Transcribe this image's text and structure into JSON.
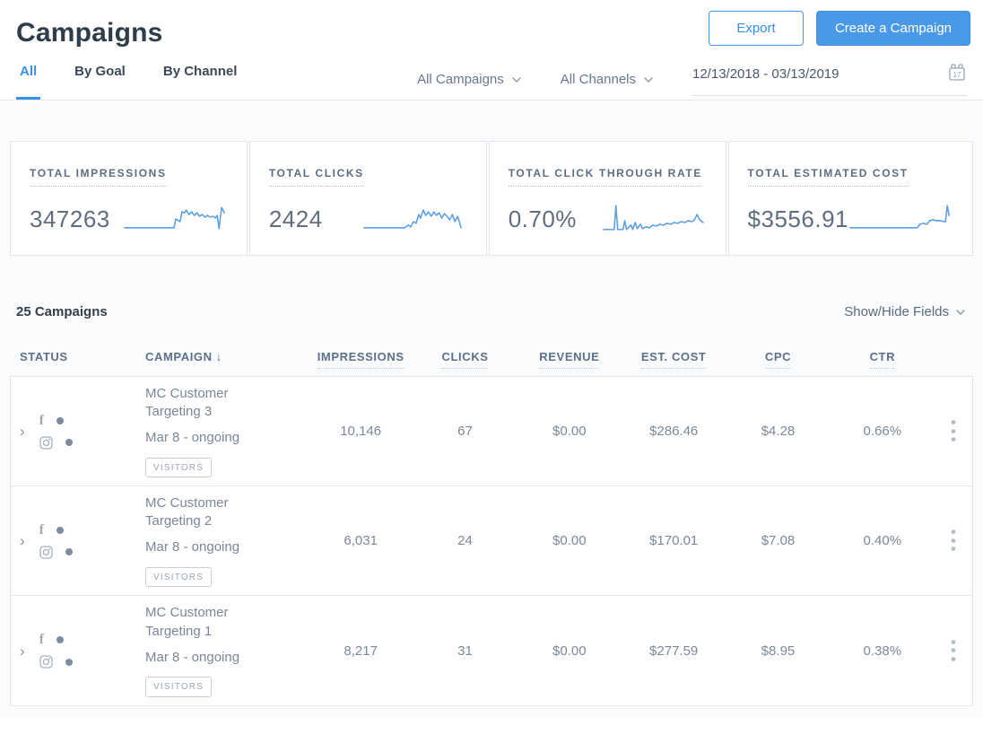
{
  "page": {
    "title": "Campaigns"
  },
  "header": {
    "export_label": "Export",
    "create_label": "Create a Campaign"
  },
  "tabs": {
    "all": "All",
    "by_goal": "By Goal",
    "by_channel": "By Channel"
  },
  "filters": {
    "campaigns_dropdown": "All Campaigns",
    "channels_dropdown": "All Channels",
    "date_range": "12/13/2018 - 03/13/2019",
    "calendar_day": "17"
  },
  "colors": {
    "accent_blue": "#3a91e8",
    "button_blue": "#4a99e8",
    "sparkline_blue": "#5b9fe6"
  },
  "stats": [
    {
      "label": "TOTAL IMPRESSIONS",
      "value": "347263",
      "spark": [
        2,
        30,
        58,
        30,
        60,
        20,
        63,
        22,
        65,
        23,
        67,
        12,
        70,
        13,
        72,
        10,
        75,
        15,
        78,
        12,
        81,
        16,
        84,
        13,
        87,
        17,
        90,
        15,
        93,
        18,
        96,
        16,
        99,
        18,
        102,
        17,
        105,
        19,
        107,
        16,
        109,
        31,
        112,
        7,
        115,
        13
      ]
    },
    {
      "label": "TOTAL CLICKS",
      "value": "2424",
      "spark": [
        2,
        30,
        48,
        30,
        52,
        27,
        55,
        29,
        58,
        23,
        61,
        25,
        64,
        15,
        66,
        19,
        69,
        10,
        72,
        16,
        75,
        12,
        78,
        17,
        81,
        12,
        84,
        16,
        87,
        13,
        90,
        19,
        93,
        14,
        96,
        17,
        99,
        21,
        102,
        15,
        105,
        23,
        108,
        17,
        112,
        30
      ]
    },
    {
      "label": "TOTAL CLICK THROUGH RATE",
      "value": "0.70%",
      "spark": [
        2,
        32,
        14,
        32,
        16,
        5,
        18,
        32,
        24,
        32,
        26,
        22,
        28,
        32,
        33,
        27,
        35,
        32,
        38,
        24,
        40,
        31,
        44,
        26,
        46,
        31,
        50,
        29,
        54,
        30,
        58,
        27,
        62,
        28,
        66,
        26,
        70,
        27,
        74,
        25,
        78,
        26,
        82,
        24,
        86,
        25,
        90,
        23,
        94,
        24,
        98,
        22,
        102,
        23,
        105,
        21,
        108,
        15,
        111,
        21,
        115,
        24
      ]
    },
    {
      "label": "TOTAL ESTIMATED COST",
      "value": "$3556.91",
      "spark": [
        2,
        30,
        78,
        30,
        81,
        26,
        85,
        25,
        89,
        26,
        92,
        22,
        96,
        21,
        100,
        22,
        104,
        22,
        108,
        23,
        110,
        23,
        112,
        5,
        114,
        16
      ]
    }
  ],
  "table": {
    "count_label": "25 Campaigns",
    "show_hide_label": "Show/Hide Fields",
    "columns": [
      "STATUS",
      "CAMPAIGN",
      "IMPRESSIONS",
      "CLICKS",
      "REVENUE",
      "EST. COST",
      "CPC",
      "CTR"
    ],
    "sort": {
      "column": "CAMPAIGN",
      "direction": "desc",
      "arrow": "↓"
    },
    "rows": [
      {
        "name": "MC Customer Targeting 3",
        "date": "Mar 8 - ongoing",
        "badge": "VISITORS",
        "channels": [
          "facebook",
          "instagram"
        ],
        "impressions": "10,146",
        "clicks": "67",
        "revenue": "$0.00",
        "est_cost": "$286.46",
        "cpc": "$4.28",
        "ctr": "0.66%"
      },
      {
        "name": "MC Customer Targeting 2",
        "date": "Mar 8 - ongoing",
        "badge": "VISITORS",
        "channels": [
          "facebook",
          "instagram"
        ],
        "impressions": "6,031",
        "clicks": "24",
        "revenue": "$0.00",
        "est_cost": "$170.01",
        "cpc": "$7.08",
        "ctr": "0.40%"
      },
      {
        "name": "MC Customer Targeting 1",
        "date": "Mar 8 - ongoing",
        "badge": "VISITORS",
        "channels": [
          "facebook",
          "instagram"
        ],
        "impressions": "8,217",
        "clicks": "31",
        "revenue": "$0.00",
        "est_cost": "$277.59",
        "cpc": "$8.95",
        "ctr": "0.38%"
      }
    ]
  }
}
